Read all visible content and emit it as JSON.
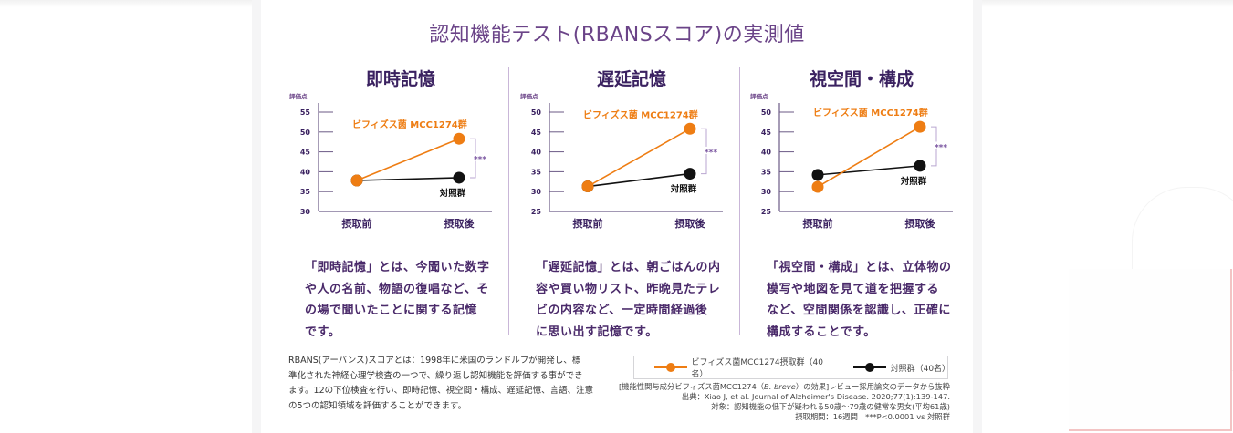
{
  "main_title": "認知機能テスト(RBANSスコア)の実測値",
  "colors": {
    "treatment": "#ee7d13",
    "control": "#111111",
    "axis": "#6b5a86",
    "title": "#6b4488",
    "bracket": "#b9a6d0",
    "stars": "#7a55a0"
  },
  "chart_data": [
    {
      "type": "line",
      "title": "即時記憶",
      "ylabel": "評価点",
      "xlabel": "",
      "categories": [
        "摂取前",
        "摂取後"
      ],
      "ylim": [
        30,
        55
      ],
      "yticks": [
        30,
        35,
        40,
        45,
        50,
        55
      ],
      "series": [
        {
          "name": "ビフィズス菌 MCC1274群",
          "values": [
            37.8,
            48.3
          ]
        },
        {
          "name": "対照群",
          "values": [
            37.8,
            38.5
          ]
        }
      ],
      "significance": "***",
      "legend_placement": "inline"
    },
    {
      "type": "line",
      "title": "遅延記憶",
      "ylabel": "評価点",
      "xlabel": "",
      "categories": [
        "摂取前",
        "摂取後"
      ],
      "ylim": [
        25,
        50
      ],
      "yticks": [
        25,
        30,
        35,
        40,
        45,
        50
      ],
      "series": [
        {
          "name": "ビフィズス菌 MCC1274群",
          "values": [
            31.3,
            45.8
          ]
        },
        {
          "name": "対照群",
          "values": [
            31.3,
            34.5
          ]
        }
      ],
      "significance": "***",
      "legend_placement": "inline"
    },
    {
      "type": "line",
      "title": "視空間・構成",
      "ylabel": "評価点",
      "xlabel": "",
      "categories": [
        "摂取前",
        "摂取後"
      ],
      "ylim": [
        25,
        50
      ],
      "yticks": [
        25,
        30,
        35,
        40,
        45,
        50
      ],
      "series": [
        {
          "name": "ビフィズス菌 MCC1274群",
          "values": [
            31.2,
            46.3
          ]
        },
        {
          "name": "対照群",
          "values": [
            34.2,
            36.5
          ]
        }
      ],
      "significance": "***",
      "legend_placement": "inline"
    }
  ],
  "descriptions": [
    [
      "「即時記憶」とは、今聞いた数字",
      "や人の名前、物語の復唱など、そ",
      "の場で聞いたことに関する記憶",
      "です。"
    ],
    [
      "「遅延記憶」とは、朝ごはんの内",
      "容や買い物リスト、昨晩見たテレ",
      "ビの内容など、一定時間経過後",
      "に思い出す記憶です。"
    ],
    [
      "「視空間・構成」とは、立体物の",
      "模写や地図を見て道を把握する",
      "など、空間関係を認識し、正確に",
      "構成することです。"
    ]
  ],
  "note_lines": [
    "RBANS(アーバンス)スコアとは：1998年に米国のランドルフが開発し、標",
    "準化された神経心理学検査の一つで、繰り返し認知機能を評価する事ができ",
    "ます。12の下位検査を行い、即時記憶、視空間・構成、遅延記憶、言語、注意",
    "の5つの認知領域を評価することができます。"
  ],
  "legend": [
    {
      "label": "ビフィズス菌MCC1274摂取群（40名）",
      "color": "#ee7d13"
    },
    {
      "label": "対照群（40名）",
      "color": "#111111"
    }
  ],
  "source": {
    "line1_pre": "[機能性関与成分ビフィズス菌MCC1274（",
    "line1_italic": "B. breve",
    "line1_post": "）の効果]レビュー採用論文のデータから抜粋",
    "line2": "出典：Xiao J, et al. Journal of Alzheimer's Disease. 2020;77(1):139-147.",
    "line3": "対象：認知機能の低下が疑われる50歳〜79歳の健常な男女(平均61歳)",
    "line4": "摂取期間：16週間　***P<0.0001 vs 対照群"
  }
}
